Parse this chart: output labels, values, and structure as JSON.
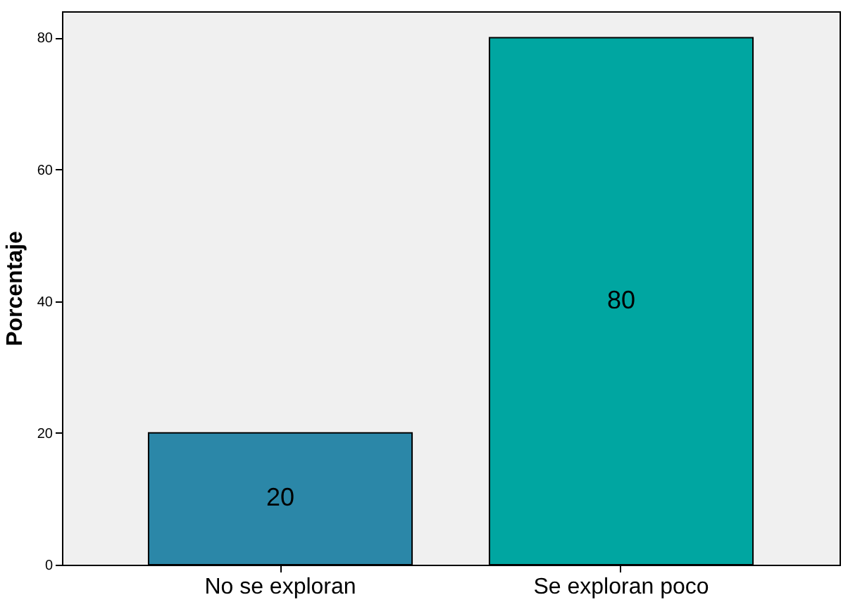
{
  "chart_data": {
    "type": "bar",
    "ylabel": "Porcentaje",
    "categories": [
      "No se exploran",
      "Se exploran poco"
    ],
    "values": [
      20,
      80
    ],
    "colors": [
      "#2b87a8",
      "#00a6a1"
    ],
    "ylim": [
      0,
      84
    ],
    "yticks": [
      0,
      20,
      40,
      60,
      80
    ],
    "grid": false,
    "data_labels": true
  }
}
